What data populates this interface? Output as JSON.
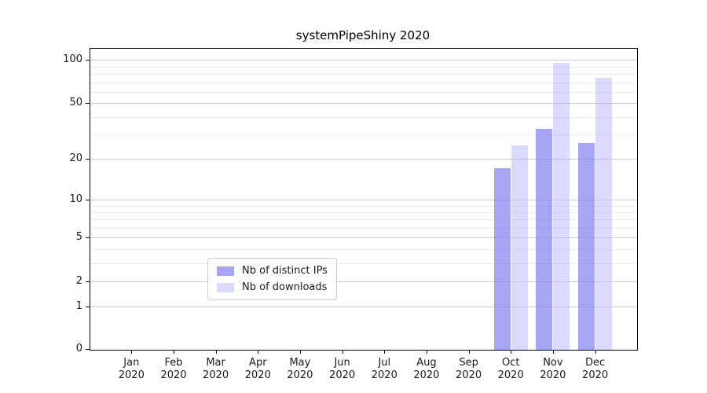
{
  "chart_data": {
    "type": "bar",
    "title": "systemPipeShiny 2020",
    "y_scale": "log1p",
    "categories": [
      "Jan",
      "Feb",
      "Mar",
      "Apr",
      "May",
      "Jun",
      "Jul",
      "Aug",
      "Sep",
      "Oct",
      "Nov",
      "Dec"
    ],
    "year_label": "2020",
    "series": [
      {
        "name": "Nb of distinct IPs",
        "color": "rgba(119,119,238,0.65)",
        "values": [
          null,
          null,
          null,
          null,
          null,
          null,
          null,
          null,
          null,
          17,
          33,
          26
        ]
      },
      {
        "name": "Nb of downloads",
        "color": "rgba(187,187,250,0.55)",
        "values": [
          null,
          null,
          null,
          null,
          null,
          null,
          null,
          null,
          null,
          25,
          96,
          75
        ]
      }
    ],
    "y_ticks": [
      0,
      1,
      2,
      5,
      10,
      20,
      50,
      100
    ],
    "y_minor_gridlines": [
      3,
      4,
      6,
      7,
      8,
      9,
      30,
      40,
      60,
      70,
      80,
      90
    ],
    "ylim": [
      0,
      120
    ],
    "grid": true,
    "legend_position": "lower-center-inside",
    "colors": {
      "spine": "#000000",
      "major_grid": "#cbcbcb",
      "minor_grid": "#ececec",
      "text": "#1a1a1a"
    }
  }
}
